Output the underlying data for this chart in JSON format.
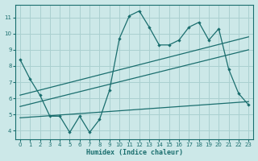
{
  "bg_color": "#cce8e8",
  "grid_color": "#aad0d0",
  "line_color": "#1a6e6e",
  "x_label": "Humidex (Indice chaleur)",
  "x_ticks": [
    0,
    1,
    2,
    3,
    4,
    5,
    6,
    7,
    8,
    9,
    10,
    11,
    12,
    13,
    14,
    15,
    16,
    17,
    18,
    19,
    20,
    21,
    22,
    23
  ],
  "y_ticks": [
    4,
    5,
    6,
    7,
    8,
    9,
    10,
    11
  ],
  "ylim": [
    3.5,
    11.8
  ],
  "xlim": [
    -0.5,
    23.5
  ],
  "series1_x": [
    0,
    1,
    2,
    3,
    4,
    5,
    6,
    7,
    8,
    9,
    10,
    11,
    12,
    13,
    14,
    15,
    16,
    17,
    18,
    19,
    20,
    21,
    22,
    23
  ],
  "series1_y": [
    8.4,
    7.2,
    6.2,
    4.9,
    4.9,
    3.9,
    4.9,
    3.9,
    4.7,
    6.5,
    9.7,
    11.1,
    11.4,
    10.4,
    9.3,
    9.3,
    9.6,
    10.4,
    10.7,
    9.6,
    10.3,
    7.8,
    6.3,
    5.6
  ],
  "trend1_start": 6.2,
  "trend1_end": 9.8,
  "trend2_start": 5.5,
  "trend2_end": 9.0,
  "trend3_start": 4.8,
  "trend3_end": 5.8
}
